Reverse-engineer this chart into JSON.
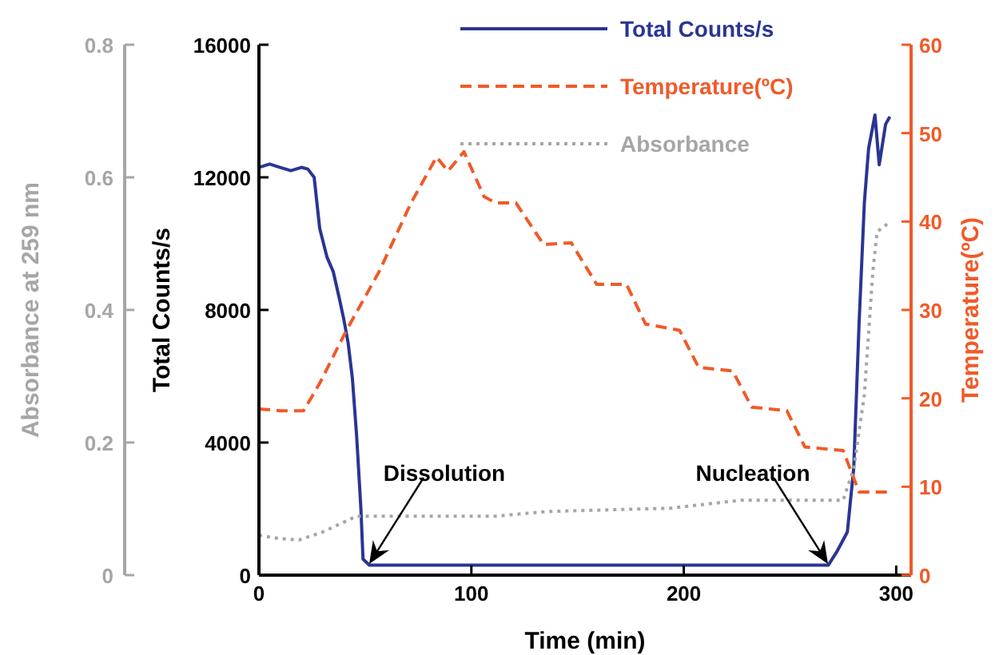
{
  "chart_data": {
    "type": "line",
    "xlabel": "Time (min)",
    "ylabel": "Total Counts/s",
    "y2label": "Temperature(ºC)",
    "y3label": "Absorbance at 259 nm",
    "xlim": [
      0,
      307
    ],
    "xticks": [
      0,
      100,
      200,
      300
    ],
    "ylim": [
      0,
      16000
    ],
    "yticks": [
      0,
      4000,
      8000,
      12000,
      16000
    ],
    "y2lim": [
      0,
      60
    ],
    "y2ticks": [
      0,
      10,
      20,
      30,
      40,
      50,
      60
    ],
    "y3lim": [
      0,
      0.8
    ],
    "y3ticks": [
      0,
      0.2,
      0.4,
      0.6,
      0.8
    ],
    "legend": "top",
    "grid": false,
    "series": [
      {
        "name": "Total Counts/s",
        "color": "#2a3593",
        "line_style": "solid",
        "axis": "y",
        "x": [
          0,
          5,
          10,
          15,
          20,
          23,
          26,
          28.6,
          32,
          35,
          38,
          40,
          42,
          44,
          46,
          48,
          49,
          52,
          100,
          200,
          268,
          272,
          277,
          280,
          282.5,
          285,
          287,
          290,
          292,
          295,
          297
        ],
        "values": [
          12300,
          12400,
          12300,
          12200,
          12300,
          12250,
          12000,
          10460,
          9600,
          9150,
          8300,
          7700,
          7000,
          5930,
          4190,
          2000,
          480,
          300,
          300,
          300,
          300,
          700,
          1300,
          3230,
          7570,
          11230,
          12870,
          13880,
          12380,
          13600,
          13830
        ]
      },
      {
        "name": "Temperature(ºC)",
        "color": "#f05a28",
        "line_style": "dashed",
        "axis": "y2",
        "x": [
          0,
          10,
          21,
          28.6,
          41,
          56.5,
          71.6,
          83.6,
          89,
          96.5,
          106,
          111.5,
          121,
          134,
          147,
          159,
          173,
          182,
          198,
          207,
          223,
          232,
          248.5,
          257,
          275,
          282.5,
          297.5
        ],
        "values": [
          18.8,
          18.6,
          18.6,
          21.7,
          27.6,
          34.3,
          42.1,
          47.3,
          45.7,
          47.9,
          42.8,
          42.1,
          42.1,
          37.4,
          37.6,
          32.9,
          32.9,
          28.4,
          27.7,
          23.5,
          23.1,
          19,
          18.6,
          14.5,
          14.1,
          9.4,
          9.4
        ]
      },
      {
        "name": "Absorbance",
        "color": "#a6a6a6",
        "line_style": "dotted",
        "axis": "y3",
        "x": [
          0,
          10,
          18.8,
          30,
          46,
          74,
          111.5,
          136,
          194,
          227,
          275,
          280,
          285,
          289,
          291,
          296
        ],
        "values": [
          0.06,
          0.055,
          0.053,
          0.065,
          0.089,
          0.089,
          0.089,
          0.096,
          0.101,
          0.113,
          0.113,
          0.161,
          0.272,
          0.458,
          0.518,
          0.53
        ]
      }
    ],
    "annotations": [
      "Dissolution",
      "Nucleation"
    ]
  }
}
